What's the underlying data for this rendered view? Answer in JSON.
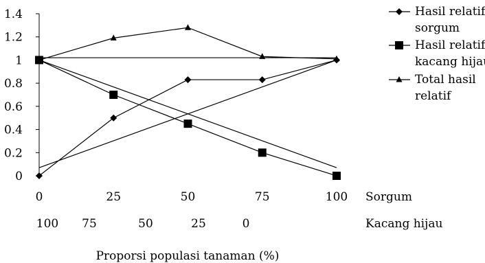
{
  "chart_data": {
    "type": "line",
    "x_row_1": {
      "name": "Sorgum",
      "ticks": [
        "0",
        "25",
        "50",
        "75",
        "100"
      ]
    },
    "x_row_2": {
      "name": "Kacang hijau",
      "ticks": [
        "100",
        "75",
        "50",
        "25",
        "0"
      ]
    },
    "x": [
      0,
      25,
      50,
      75,
      100
    ],
    "xlabel": "Proporsi populasi tanaman (%)",
    "ylabel": "",
    "ylim": [
      0,
      1.4
    ],
    "yticks": [
      "0",
      "0.2",
      "0.4",
      "0.6",
      "0.8",
      "1",
      "1.2",
      "1.4"
    ],
    "grid": false,
    "legend_position": "top-right",
    "series": [
      {
        "name": "Hasil relatif sorgum",
        "legend_lines": [
          "Hasil relatif",
          "sorgum"
        ],
        "marker": "diamond",
        "values": [
          0,
          0.5,
          0.83,
          0.83,
          1.0
        ]
      },
      {
        "name": "Hasil relatif kacang hijau",
        "legend_lines": [
          "Hasil relatif",
          "kacang hijau"
        ],
        "marker": "square",
        "values": [
          1.0,
          0.7,
          0.45,
          0.2,
          0
        ]
      },
      {
        "name": "Total hasil relatif",
        "legend_lines": [
          "Total hasil",
          "relatif"
        ],
        "marker": "triangle",
        "values": [
          1.0,
          1.19,
          1.28,
          1.03,
          1.01
        ]
      }
    ],
    "reference_lines": [
      {
        "from": [
          0,
          0.07
        ],
        "to": [
          100,
          1.0
        ]
      },
      {
        "from": [
          0,
          1.0
        ],
        "to": [
          100,
          0.07
        ]
      },
      {
        "from": [
          0,
          1.02
        ],
        "to": [
          100,
          1.02
        ]
      }
    ]
  }
}
